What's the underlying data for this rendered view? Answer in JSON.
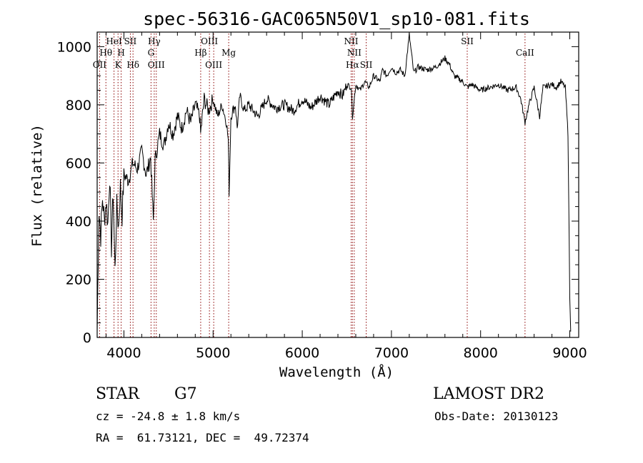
{
  "chart_data": {
    "type": "line",
    "title": "spec-56316-GAC065N50V1_sp10-081.fits",
    "xlabel": "Wavelength (Å)",
    "ylabel": "Flux (relative)",
    "xlim": [
      3700,
      9100
    ],
    "ylim": [
      0,
      1050
    ],
    "x_ticks": [
      4000,
      5000,
      6000,
      7000,
      8000,
      9000
    ],
    "y_ticks": [
      0,
      200,
      400,
      600,
      800,
      1000
    ],
    "grid": false,
    "series": [
      {
        "x": [
          3700,
          3720,
          3740,
          3760,
          3780,
          3800,
          3820,
          3840,
          3860,
          3880,
          3900,
          3920,
          3940,
          3960,
          3980,
          4000,
          4050,
          4100,
          4150,
          4200,
          4250,
          4300,
          4330,
          4350,
          4400,
          4450,
          4500,
          4550,
          4600,
          4650,
          4700,
          4750,
          4800,
          4850,
          4860,
          4900,
          4950,
          5000,
          5050,
          5100,
          5150,
          5170,
          5180,
          5200,
          5220,
          5250,
          5270,
          5300,
          5350,
          5400,
          5500,
          5600,
          5700,
          5800,
          5900,
          6000,
          6100,
          6200,
          6300,
          6400,
          6450,
          6500,
          6550,
          6563,
          6600,
          6650,
          6700,
          6750,
          6800,
          6870,
          6900,
          6950,
          7000,
          7050,
          7100,
          7150,
          7200,
          7250,
          7300,
          7400,
          7500,
          7600,
          7650,
          7700,
          7800,
          7850,
          7900,
          8000,
          8100,
          8200,
          8300,
          8400,
          8450,
          8498,
          8542,
          8600,
          8662,
          8700,
          8800,
          8850,
          8900,
          8950,
          8980,
          9000,
          9010
        ],
        "y": [
          20,
          440,
          350,
          480,
          400,
          470,
          390,
          560,
          310,
          500,
          230,
          450,
          380,
          520,
          420,
          560,
          540,
          600,
          580,
          640,
          560,
          620,
          400,
          610,
          700,
          660,
          740,
          700,
          760,
          720,
          780,
          740,
          800,
          760,
          700,
          820,
          780,
          820,
          760,
          800,
          740,
          680,
          500,
          760,
          780,
          800,
          720,
          830,
          780,
          800,
          760,
          820,
          790,
          800,
          780,
          820,
          790,
          830,
          800,
          850,
          830,
          870,
          860,
          760,
          870,
          850,
          880,
          860,
          900,
          880,
          920,
          900,
          930,
          910,
          920,
          900,
          1040,
          910,
          930,
          920,
          930,
          960,
          940,
          900,
          880,
          860,
          870,
          850,
          860,
          870,
          850,
          860,
          820,
          740,
          800,
          860,
          760,
          860,
          870,
          860,
          880,
          860,
          700,
          140,
          20
        ]
      }
    ],
    "lines": [
      {
        "label": "OII",
        "x": 3727,
        "row": 3
      },
      {
        "label": "Hθ",
        "x": 3798,
        "row": 2
      },
      {
        "label": "HeI",
        "x": 3889,
        "row": 1
      },
      {
        "label": "K",
        "x": 3934,
        "row": 3
      },
      {
        "label": "H",
        "x": 3969,
        "row": 2
      },
      {
        "label": "SII",
        "x": 4072,
        "row": 1
      },
      {
        "label": "Hδ",
        "x": 4102,
        "row": 3
      },
      {
        "label": "Hγ",
        "x": 4340,
        "row": 1
      },
      {
        "label": "G",
        "x": 4304,
        "row": 2
      },
      {
        "label": "OIII",
        "x": 4363,
        "row": 3
      },
      {
        "label": "Hβ",
        "x": 4861,
        "row": 2
      },
      {
        "label": "OIII",
        "x": 4959,
        "row": 1
      },
      {
        "label": "OIII",
        "x": 5007,
        "row": 3
      },
      {
        "label": "Mg",
        "x": 5175,
        "row": 2
      },
      {
        "label": "NII",
        "x": 6548,
        "row": 1
      },
      {
        "label": "NII",
        "x": 6583,
        "row": 2
      },
      {
        "label": "Hα",
        "x": 6563,
        "row": 3
      },
      {
        "label": "SII",
        "x": 6717,
        "row": 3
      },
      {
        "label": "SII",
        "x": 7850,
        "row": 1
      },
      {
        "label": "CaII",
        "x": 8498,
        "row": 2
      }
    ]
  },
  "info": {
    "class": "STAR",
    "subclass": "G7",
    "survey": "LAMOST DR2",
    "cz": "cz = -24.8 ± 1.8 km/s",
    "obs_date": "Obs-Date: 20130123",
    "coords": "RA =  61.73121, DEC =  49.72374"
  }
}
